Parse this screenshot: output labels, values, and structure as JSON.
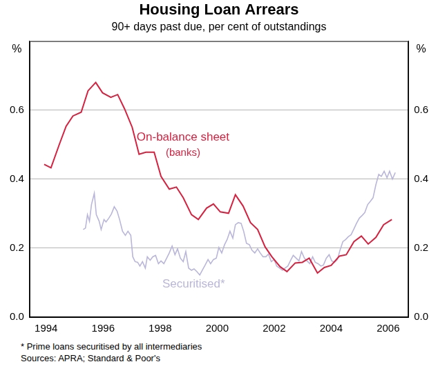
{
  "chart_data": {
    "type": "line",
    "title": "Housing Loan Arrears",
    "subtitle": "90+ days past due, per cent of outstandings",
    "ylabel": "%",
    "xlim": [
      1993.42,
      2006.71
    ],
    "xticks": [
      1994,
      1996,
      1998,
      2000,
      2002,
      2004,
      2006
    ],
    "ylim": [
      0,
      0.8
    ],
    "yticks": [
      {
        "value": 0,
        "label": "0.0"
      },
      0.2,
      0.4,
      0.6
    ],
    "grid": true,
    "series": [
      {
        "name": "On-balance sheet",
        "color": "#d71f3e",
        "x": [
          1993.93,
          1994.17,
          1994.46,
          1994.7,
          1994.94,
          1995.23,
          1995.47,
          1995.74,
          1995.98,
          1996.27,
          1996.51,
          1996.75,
          1997.02,
          1997.26,
          1997.5,
          1997.79,
          1998.03,
          1998.32,
          1998.57,
          1998.81,
          1999.1,
          1999.34,
          1999.63,
          1999.87,
          2000.11,
          2000.4,
          2000.64,
          2000.91,
          2001.17,
          2001.42,
          2001.68,
          2001.92,
          2002.21,
          2002.45,
          2002.74,
          2002.99,
          2003.23,
          2003.52,
          2003.76,
          2004.0,
          2004.29,
          2004.53,
          2004.8,
          2005.06,
          2005.3,
          2005.57,
          2005.84,
          2006.13
        ],
        "values": [
          0.443,
          0.433,
          0.5,
          0.553,
          0.583,
          0.594,
          0.656,
          0.68,
          0.65,
          0.637,
          0.645,
          0.604,
          0.55,
          0.472,
          0.478,
          0.478,
          0.408,
          0.371,
          0.377,
          0.346,
          0.297,
          0.283,
          0.316,
          0.328,
          0.305,
          0.301,
          0.355,
          0.322,
          0.274,
          0.254,
          0.204,
          0.175,
          0.146,
          0.132,
          0.157,
          0.159,
          0.171,
          0.128,
          0.144,
          0.15,
          0.177,
          0.181,
          0.219,
          0.235,
          0.212,
          0.231,
          0.268,
          0.283
        ]
      },
      {
        "name": "Securitised*",
        "color": "#b9b6d9",
        "x": [
          1995.3,
          1995.38,
          1995.45,
          1995.52,
          1995.59,
          1995.69,
          1995.76,
          1995.86,
          1995.93,
          1996.03,
          1996.1,
          1996.2,
          1996.29,
          1996.39,
          1996.49,
          1996.58,
          1996.68,
          1996.78,
          1996.87,
          1996.97,
          1997.04,
          1997.12,
          1997.21,
          1997.29,
          1997.38,
          1997.48,
          1997.55,
          1997.65,
          1997.74,
          1997.84,
          1997.94,
          1998.03,
          1998.13,
          1998.23,
          1998.32,
          1998.42,
          1998.52,
          1998.61,
          1998.71,
          1998.81,
          1998.9,
          1999.0,
          1999.1,
          1999.19,
          1999.29,
          1999.39,
          1999.48,
          1999.58,
          1999.68,
          1999.77,
          1999.87,
          1999.97,
          2000.06,
          2000.16,
          2000.26,
          2000.35,
          2000.45,
          2000.55,
          2000.64,
          2000.74,
          2000.84,
          2000.93,
          2001.03,
          2001.13,
          2001.22,
          2001.32,
          2001.42,
          2001.51,
          2001.61,
          2001.71,
          2001.8,
          2001.9,
          2002.0,
          2002.09,
          2002.19,
          2002.29,
          2002.38,
          2002.48,
          2002.58,
          2002.67,
          2002.77,
          2002.87,
          2002.96,
          2003.06,
          2003.15,
          2003.25,
          2003.35,
          2003.44,
          2003.54,
          2003.64,
          2003.73,
          2003.83,
          2003.93,
          2004.02,
          2004.12,
          2004.22,
          2004.31,
          2004.41,
          2004.51,
          2004.6,
          2004.7,
          2004.8,
          2004.89,
          2004.99,
          2005.09,
          2005.18,
          2005.28,
          2005.38,
          2005.47,
          2005.57,
          2005.67,
          2005.76,
          2005.86,
          2005.96,
          2006.05,
          2006.15,
          2006.25
        ],
        "values": [
          0.254,
          0.258,
          0.297,
          0.278,
          0.326,
          0.359,
          0.297,
          0.278,
          0.254,
          0.283,
          0.276,
          0.287,
          0.299,
          0.32,
          0.307,
          0.282,
          0.249,
          0.237,
          0.249,
          0.237,
          0.175,
          0.161,
          0.159,
          0.148,
          0.161,
          0.142,
          0.175,
          0.165,
          0.175,
          0.179,
          0.155,
          0.163,
          0.155,
          0.171,
          0.186,
          0.206,
          0.181,
          0.198,
          0.171,
          0.161,
          0.19,
          0.142,
          0.136,
          0.14,
          0.132,
          0.122,
          0.136,
          0.151,
          0.167,
          0.155,
          0.167,
          0.171,
          0.202,
          0.186,
          0.21,
          0.225,
          0.249,
          0.229,
          0.268,
          0.274,
          0.272,
          0.249,
          0.214,
          0.21,
          0.194,
          0.186,
          0.198,
          0.186,
          0.175,
          0.175,
          0.183,
          0.161,
          0.167,
          0.148,
          0.142,
          0.136,
          0.142,
          0.148,
          0.165,
          0.179,
          0.171,
          0.163,
          0.19,
          0.171,
          0.163,
          0.155,
          0.175,
          0.159,
          0.155,
          0.148,
          0.151,
          0.171,
          0.181,
          0.163,
          0.159,
          0.167,
          0.194,
          0.219,
          0.225,
          0.233,
          0.239,
          0.256,
          0.272,
          0.287,
          0.295,
          0.303,
          0.326,
          0.336,
          0.346,
          0.384,
          0.414,
          0.408,
          0.423,
          0.404,
          0.423,
          0.4,
          0.419
        ]
      }
    ],
    "annotations": [
      "(banks)"
    ],
    "notes": [
      "* Prime loans securitised by all intermediaries",
      "Sources: APRA; Standard & Poor's"
    ]
  }
}
